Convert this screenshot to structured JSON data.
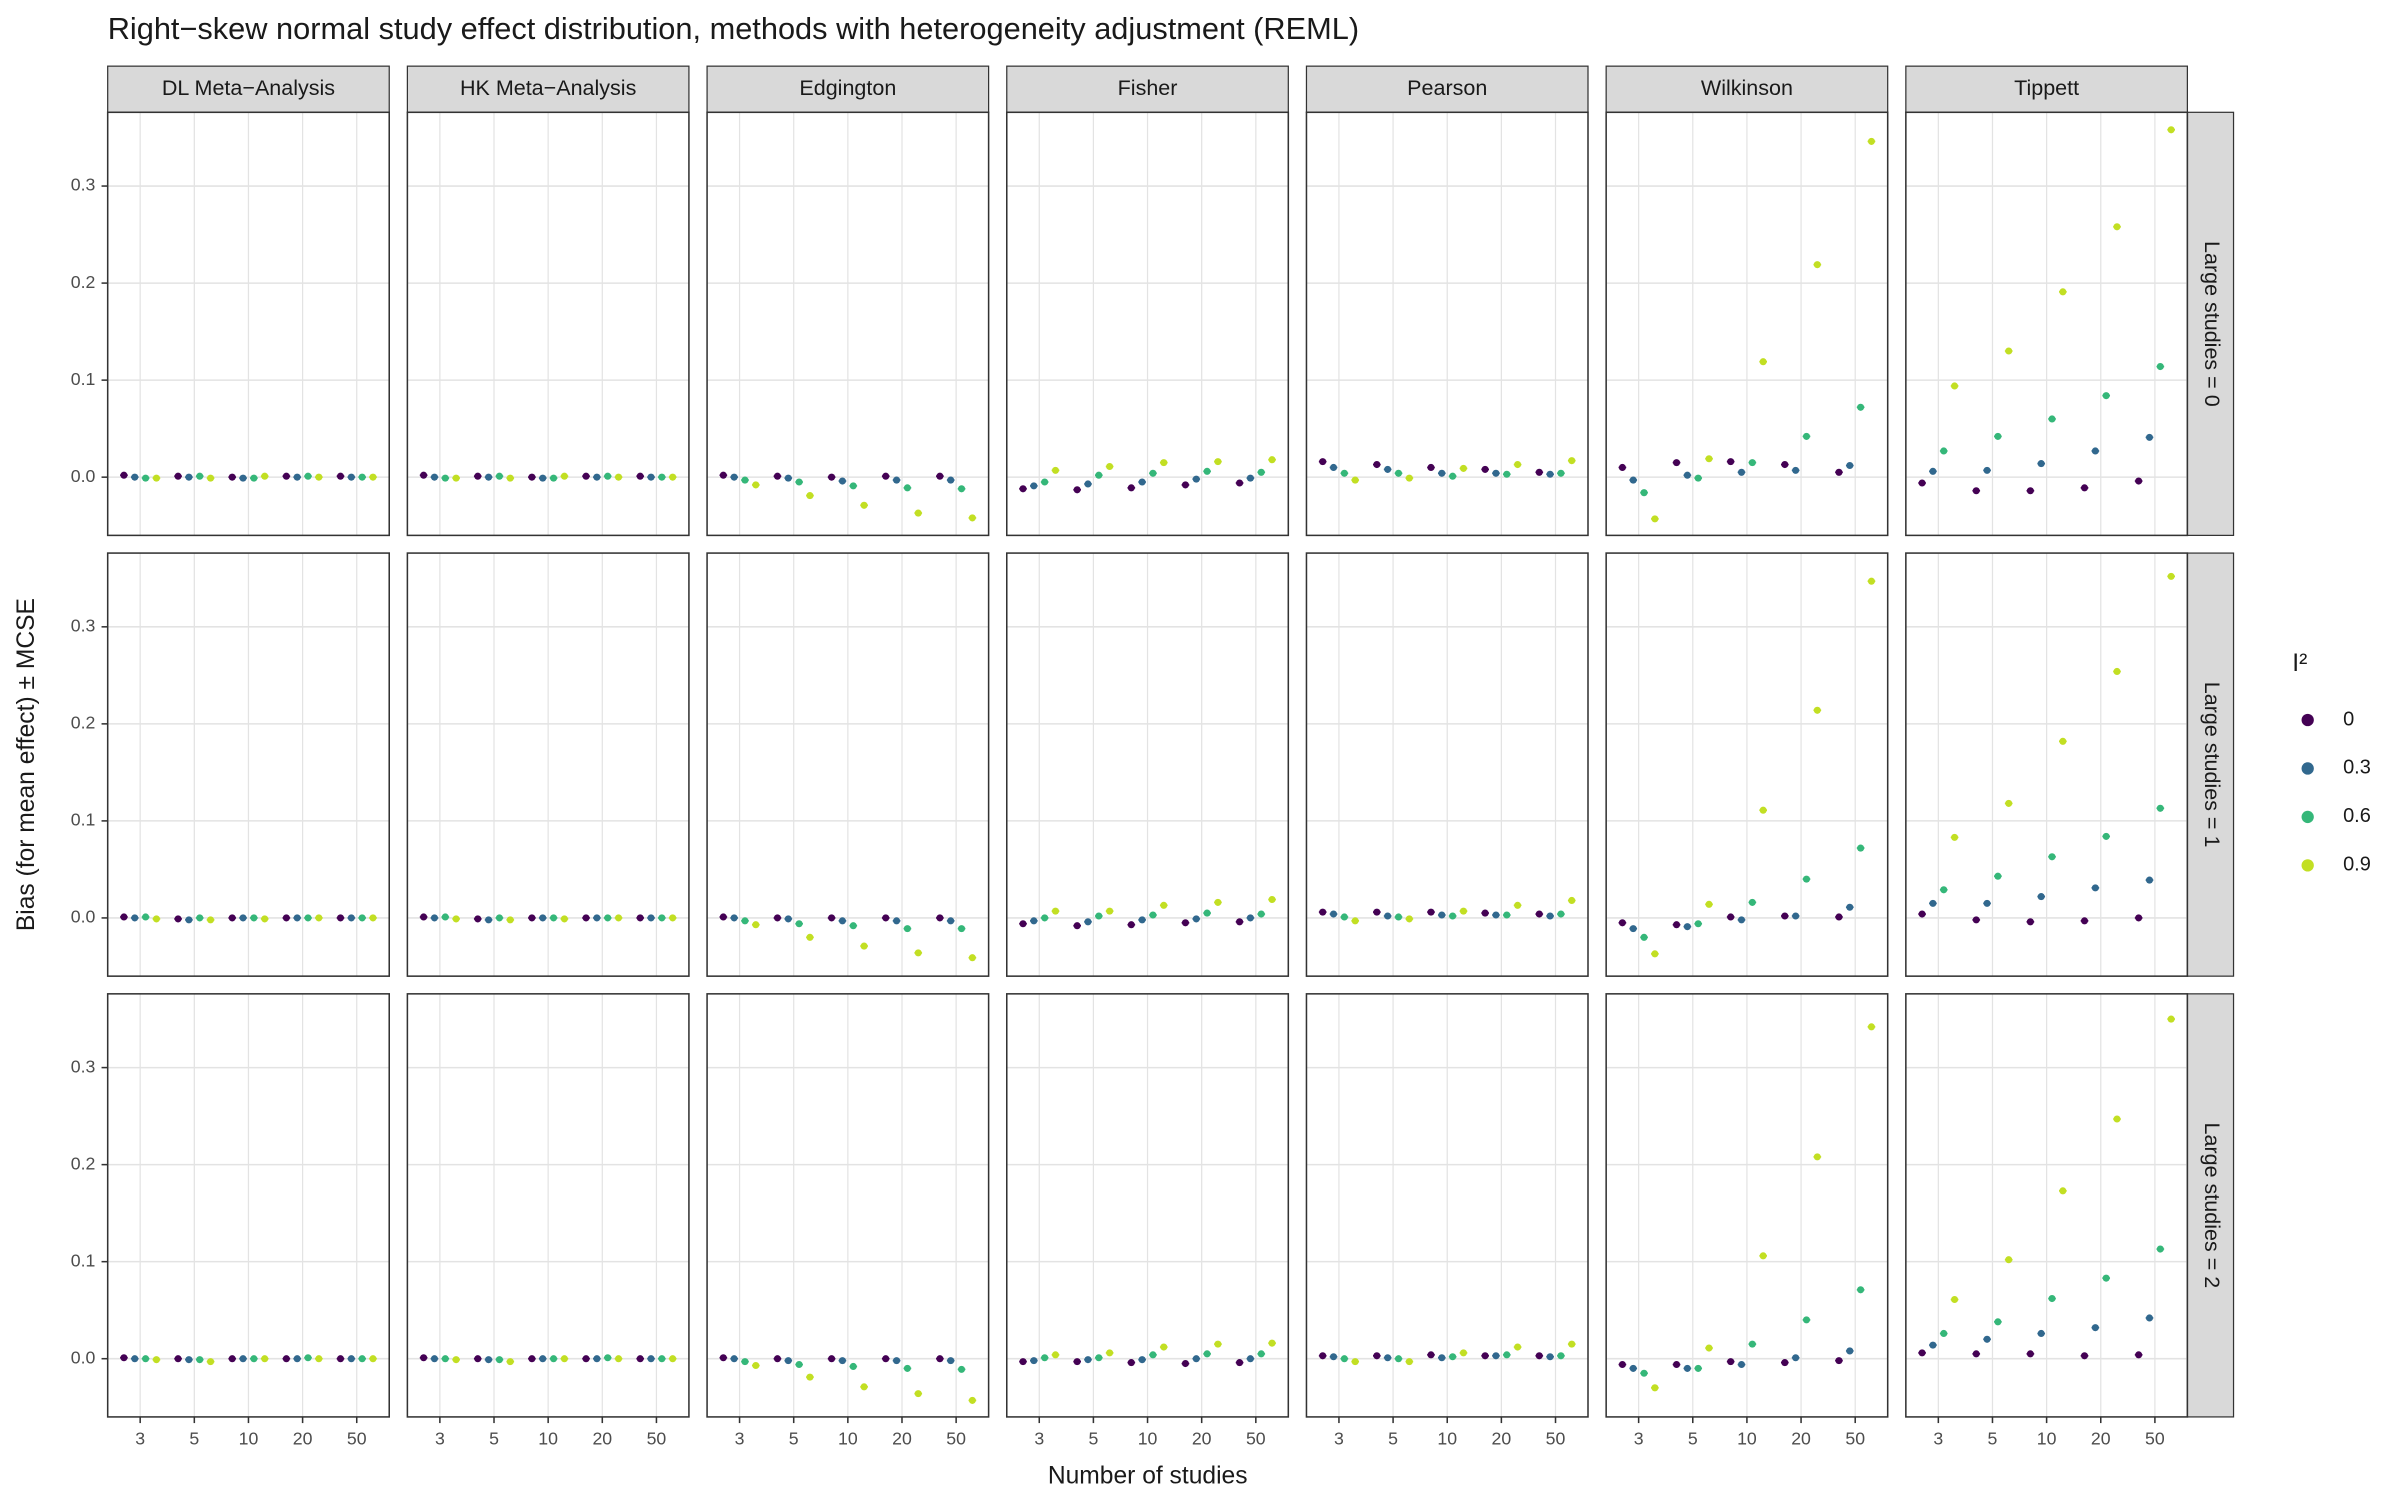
{
  "chart_data": {
    "type": "dot",
    "title": "Right−skew normal study effect distribution, methods with heterogeneity adjustment (REML)",
    "x_label": "Number of studies",
    "y_label": "Bias (for mean effect) ± MCSE",
    "legend_title": "I²",
    "columns": [
      "DL Meta−Analysis",
      "HK Meta−Analysis",
      "Edgington",
      "Fisher",
      "Pearson",
      "Wilkinson",
      "Tippett"
    ],
    "rows": [
      "Large studies = 0",
      "Large studies = 1",
      "Large studies = 2"
    ],
    "categories": [
      "3",
      "5",
      "10",
      "20",
      "50"
    ],
    "series": [
      {
        "name": "0",
        "color": "#440154"
      },
      {
        "name": "0.3",
        "color": "#31688e"
      },
      {
        "name": "0.6",
        "color": "#35b779"
      },
      {
        "name": "0.9",
        "color": "#c2df23"
      }
    ],
    "ylim": [
      -0.06,
      0.376
    ],
    "yticks": [
      {
        "value": 0,
        "label": "0.0"
      },
      0.1,
      0.2,
      0.3
    ],
    "grid": true,
    "panels": [
      [
        [
          [
            0.002,
            0.001,
            0.0,
            0.001,
            0.001
          ],
          [
            0.0,
            0.0,
            -0.001,
            0.0,
            0.0
          ],
          [
            -0.001,
            0.001,
            -0.001,
            0.001,
            0.0
          ],
          [
            -0.001,
            -0.001,
            0.001,
            0.0,
            0.0
          ]
        ],
        [
          [
            0.002,
            0.001,
            0.0,
            0.001,
            0.001
          ],
          [
            0.0,
            0.0,
            -0.001,
            0.0,
            0.0
          ],
          [
            -0.001,
            0.001,
            -0.001,
            0.001,
            0.0
          ],
          [
            -0.001,
            -0.001,
            0.001,
            0.0,
            0.0
          ]
        ],
        [
          [
            0.002,
            0.001,
            0.0,
            0.001,
            0.001
          ],
          [
            0.0,
            -0.001,
            -0.004,
            -0.003,
            -0.003
          ],
          [
            -0.003,
            -0.005,
            -0.009,
            -0.011,
            -0.012
          ],
          [
            -0.008,
            -0.019,
            -0.029,
            -0.037,
            -0.042
          ]
        ],
        [
          [
            -0.012,
            -0.013,
            -0.011,
            -0.008,
            -0.006
          ],
          [
            -0.009,
            -0.007,
            -0.005,
            -0.002,
            -0.001
          ],
          [
            -0.005,
            0.002,
            0.004,
            0.006,
            0.005
          ],
          [
            0.007,
            0.011,
            0.015,
            0.016,
            0.018
          ]
        ],
        [
          [
            0.016,
            0.013,
            0.01,
            0.008,
            0.005
          ],
          [
            0.01,
            0.008,
            0.004,
            0.004,
            0.003
          ],
          [
            0.004,
            0.004,
            0.001,
            0.003,
            0.004
          ],
          [
            -0.003,
            -0.001,
            0.009,
            0.013,
            0.017
          ]
        ],
        [
          [
            0.01,
            0.015,
            0.016,
            0.013,
            0.005
          ],
          [
            -0.003,
            0.002,
            0.005,
            0.007,
            0.012
          ],
          [
            -0.016,
            -0.001,
            0.015,
            0.042,
            0.072
          ],
          [
            -0.043,
            0.019,
            0.119,
            0.219,
            0.346
          ]
        ],
        [
          [
            -0.006,
            -0.014,
            -0.014,
            -0.011,
            -0.004
          ],
          [
            0.006,
            0.007,
            0.014,
            0.027,
            0.041
          ],
          [
            0.027,
            0.042,
            0.06,
            0.084,
            0.114
          ],
          [
            0.094,
            0.13,
            0.191,
            0.258,
            0.358
          ]
        ]
      ],
      [
        [
          [
            0.001,
            -0.001,
            0.0,
            0.0,
            0.0
          ],
          [
            0.0,
            -0.002,
            0.0,
            0.0,
            0.0
          ],
          [
            0.001,
            0.0,
            0.0,
            0.0,
            0.0
          ],
          [
            -0.001,
            -0.002,
            -0.001,
            0.0,
            0.0
          ]
        ],
        [
          [
            0.001,
            -0.001,
            0.0,
            0.0,
            0.0
          ],
          [
            0.0,
            -0.002,
            0.0,
            0.0,
            0.0
          ],
          [
            0.001,
            0.0,
            0.0,
            0.0,
            0.0
          ],
          [
            -0.001,
            -0.002,
            -0.001,
            0.0,
            0.0
          ]
        ],
        [
          [
            0.001,
            0.0,
            0.0,
            0.0,
            0.0
          ],
          [
            0.0,
            -0.001,
            -0.003,
            -0.003,
            -0.003
          ],
          [
            -0.003,
            -0.006,
            -0.008,
            -0.011,
            -0.011
          ],
          [
            -0.007,
            -0.02,
            -0.029,
            -0.036,
            -0.041
          ]
        ],
        [
          [
            -0.006,
            -0.008,
            -0.007,
            -0.005,
            -0.004
          ],
          [
            -0.003,
            -0.004,
            -0.002,
            -0.001,
            0.0
          ],
          [
            0.0,
            0.002,
            0.003,
            0.005,
            0.004
          ],
          [
            0.007,
            0.007,
            0.013,
            0.016,
            0.019
          ]
        ],
        [
          [
            0.006,
            0.006,
            0.006,
            0.005,
            0.004
          ],
          [
            0.004,
            0.002,
            0.003,
            0.003,
            0.002
          ],
          [
            0.001,
            0.001,
            0.002,
            0.003,
            0.004
          ],
          [
            -0.003,
            -0.001,
            0.007,
            0.013,
            0.018
          ]
        ],
        [
          [
            -0.005,
            -0.007,
            0.001,
            0.002,
            0.001
          ],
          [
            -0.011,
            -0.009,
            -0.002,
            0.002,
            0.011
          ],
          [
            -0.02,
            -0.006,
            0.016,
            0.04,
            0.072
          ],
          [
            -0.037,
            0.014,
            0.111,
            0.214,
            0.347
          ]
        ],
        [
          [
            0.004,
            -0.002,
            -0.004,
            -0.003,
            0.0
          ],
          [
            0.015,
            0.015,
            0.022,
            0.031,
            0.039
          ],
          [
            0.029,
            0.043,
            0.063,
            0.084,
            0.113
          ],
          [
            0.083,
            0.118,
            0.182,
            0.254,
            0.352
          ]
        ]
      ],
      [
        [
          [
            0.001,
            0.0,
            0.0,
            0.0,
            0.0
          ],
          [
            0.0,
            -0.001,
            0.0,
            0.0,
            0.0
          ],
          [
            0.0,
            -0.001,
            0.0,
            0.001,
            0.0
          ],
          [
            -0.001,
            -0.003,
            0.0,
            0.0,
            0.0
          ]
        ],
        [
          [
            0.001,
            0.0,
            0.0,
            0.0,
            0.0
          ],
          [
            0.0,
            -0.001,
            0.0,
            0.0,
            0.0
          ],
          [
            0.0,
            -0.001,
            0.0,
            0.001,
            0.0
          ],
          [
            -0.001,
            -0.003,
            0.0,
            0.0,
            0.0
          ]
        ],
        [
          [
            0.001,
            0.0,
            0.0,
            0.0,
            0.0
          ],
          [
            0.0,
            -0.002,
            -0.002,
            -0.002,
            -0.002
          ],
          [
            -0.003,
            -0.006,
            -0.008,
            -0.01,
            -0.011
          ],
          [
            -0.007,
            -0.019,
            -0.029,
            -0.036,
            -0.043
          ]
        ],
        [
          [
            -0.003,
            -0.003,
            -0.004,
            -0.005,
            -0.004
          ],
          [
            -0.002,
            -0.001,
            -0.001,
            0.0,
            0.0
          ],
          [
            0.001,
            0.001,
            0.004,
            0.005,
            0.005
          ],
          [
            0.004,
            0.006,
            0.012,
            0.015,
            0.016
          ]
        ],
        [
          [
            0.003,
            0.003,
            0.004,
            0.003,
            0.003
          ],
          [
            0.002,
            0.001,
            0.001,
            0.003,
            0.002
          ],
          [
            0.0,
            0.0,
            0.002,
            0.004,
            0.003
          ],
          [
            -0.003,
            -0.003,
            0.006,
            0.012,
            0.015
          ]
        ],
        [
          [
            -0.006,
            -0.006,
            -0.003,
            -0.004,
            -0.002
          ],
          [
            -0.01,
            -0.01,
            -0.006,
            0.001,
            0.008
          ],
          [
            -0.015,
            -0.01,
            0.015,
            0.04,
            0.071
          ],
          [
            -0.03,
            0.011,
            0.106,
            0.208,
            0.342
          ]
        ],
        [
          [
            0.006,
            0.005,
            0.005,
            0.003,
            0.004
          ],
          [
            0.014,
            0.02,
            0.026,
            0.032,
            0.042
          ],
          [
            0.026,
            0.038,
            0.062,
            0.083,
            0.113
          ],
          [
            0.061,
            0.102,
            0.173,
            0.247,
            0.35
          ]
        ]
      ]
    ]
  }
}
